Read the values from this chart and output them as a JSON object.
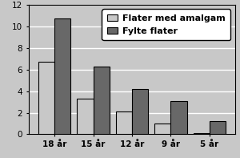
{
  "categories": [
    "18 år",
    "15 år",
    "12 år",
    "9 år",
    "5 år"
  ],
  "amalgam_values": [
    6.7,
    3.3,
    2.1,
    1.0,
    0.1
  ],
  "fylte_values": [
    10.7,
    6.3,
    4.2,
    3.1,
    1.2
  ],
  "amalgam_color": "#c8c8c8",
  "fylte_color": "#686868",
  "legend_labels": [
    "Flater med amalgam",
    "Fylte flater"
  ],
  "ylim": [
    0,
    12
  ],
  "yticks": [
    0,
    2,
    4,
    6,
    8,
    10,
    12
  ],
  "background_color": "#c8c8c8",
  "plot_bg_color": "#c8c8c8",
  "bar_width": 0.42,
  "title": ""
}
